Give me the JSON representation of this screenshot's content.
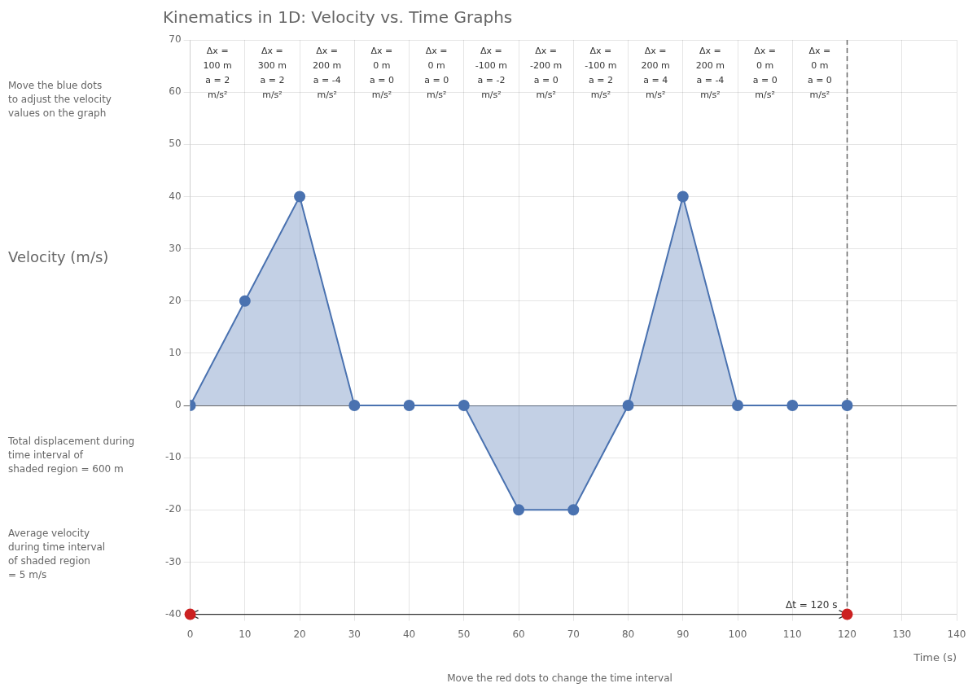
{
  "chart_data": {
    "type": "line",
    "title": "Kinematics in 1D: Velocity vs. Time Graphs",
    "x_label": "Time (s)",
    "y_label": "Velocity (m/s)",
    "xlim": [
      0,
      140
    ],
    "ylim": [
      -40,
      70
    ],
    "xticks": [
      0,
      10,
      20,
      30,
      40,
      50,
      60,
      70,
      80,
      90,
      100,
      110,
      120,
      130,
      140
    ],
    "yticks": [
      -40,
      -30,
      -20,
      -10,
      0,
      10,
      20,
      30,
      40,
      50,
      60,
      70
    ],
    "grid": true,
    "series": [
      {
        "type": "area",
        "color": "#4a72b0",
        "marker": "circle",
        "x": [
          0,
          10,
          20,
          30,
          40,
          50,
          60,
          70,
          80,
          90,
          100,
          110,
          120
        ],
        "values": [
          0,
          20,
          40,
          0,
          0,
          0,
          -20,
          -20,
          0,
          40,
          0,
          0,
          0
        ]
      },
      {
        "type": "scatter",
        "color": "#cc2222",
        "marker": "circle",
        "x": [
          0,
          120
        ],
        "values": [
          -40,
          -40
        ]
      }
    ],
    "vertical_line": {
      "x": 120,
      "line_style": "dashed"
    },
    "interval": {
      "x": [
        0,
        120
      ],
      "y": -40,
      "label": "Δt = 120 s"
    },
    "segment_labels": [
      {
        "x": 5,
        "texts": [
          "Δx =",
          "100 m",
          "a = 2",
          "m/s²"
        ]
      },
      {
        "x": 15,
        "texts": [
          "Δx =",
          "300 m",
          "a = 2",
          "m/s²"
        ]
      },
      {
        "x": 25,
        "texts": [
          "Δx =",
          "200 m",
          "a = -4",
          "m/s²"
        ]
      },
      {
        "x": 35,
        "texts": [
          "Δx =",
          "0 m",
          "a = 0",
          "m/s²"
        ]
      },
      {
        "x": 45,
        "texts": [
          "Δx =",
          "0 m",
          "a = 0",
          "m/s²"
        ]
      },
      {
        "x": 55,
        "texts": [
          "Δx =",
          "-100 m",
          "a = -2",
          "m/s²"
        ]
      },
      {
        "x": 65,
        "texts": [
          "Δx =",
          "-200 m",
          "a = 0",
          "m/s²"
        ]
      },
      {
        "x": 75,
        "texts": [
          "Δx =",
          "-100 m",
          "a = 2",
          "m/s²"
        ]
      },
      {
        "x": 85,
        "texts": [
          "Δx =",
          "200 m",
          "a = 4",
          "m/s²"
        ]
      },
      {
        "x": 95,
        "texts": [
          "Δx =",
          "200 m",
          "a = -4",
          "m/s²"
        ]
      },
      {
        "x": 105,
        "texts": [
          "Δx =",
          "0 m",
          "a = 0",
          "m/s²"
        ]
      },
      {
        "x": 115,
        "texts": [
          "Δx =",
          "0 m",
          "a = 0",
          "m/s²"
        ]
      }
    ],
    "bottom_note": "Move the red dots to change the time interval",
    "left_texts": [
      [
        "Move the blue dots",
        "to adjust the velocity",
        "values on the graph"
      ],
      [
        "Total displacement during",
        "time interval of",
        "shaded region = 600 m"
      ],
      [
        "Average velocity",
        "during time interval",
        "of shaded region",
        "= 5 m/s"
      ]
    ]
  }
}
